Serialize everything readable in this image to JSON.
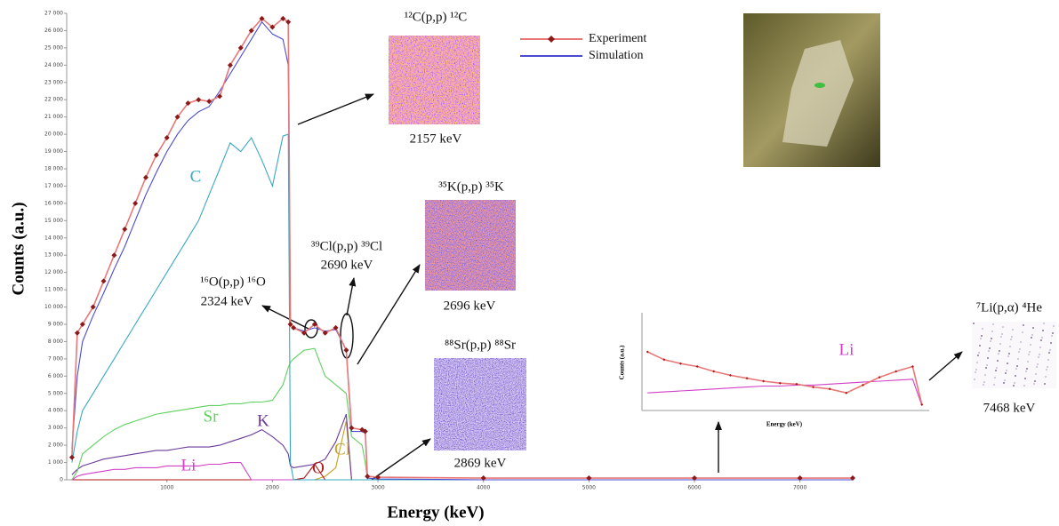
{
  "chart_data": [
    {
      "type": "line",
      "xlabel": "Energy (keV)",
      "ylabel": "Counts (a.u.)",
      "xlim": [
        50,
        7500
      ],
      "ylim": [
        0,
        27000
      ],
      "xticks": [
        1000,
        2000,
        3000,
        4000,
        5000,
        6000,
        7000
      ],
      "yticks": [
        0,
        {
          "value": 1000,
          "label": "1 000"
        },
        {
          "value": 2000,
          "label": "2 000"
        },
        {
          "value": 3000,
          "label": "3 000"
        },
        {
          "value": 4000,
          "label": "4 000"
        },
        {
          "value": 5000,
          "label": "5 000"
        },
        {
          "value": 6000,
          "label": "6 000"
        },
        {
          "value": 7000,
          "label": "7 000"
        },
        {
          "value": 8000,
          "label": "8 000"
        },
        {
          "value": 9000,
          "label": "9 000"
        },
        {
          "value": 10000,
          "label": "10 000"
        },
        {
          "value": 11000,
          "label": "11 000"
        },
        {
          "value": 12000,
          "label": "12 000"
        },
        {
          "value": 13000,
          "label": "13 000"
        },
        {
          "value": 14000,
          "label": "14 000"
        },
        {
          "value": 15000,
          "label": "15 000"
        },
        {
          "value": 16000,
          "label": "16 000"
        },
        {
          "value": 17000,
          "label": "17 000"
        },
        {
          "value": 18000,
          "label": "18 000"
        },
        {
          "value": 19000,
          "label": "19 000"
        },
        {
          "value": 20000,
          "label": "20 000"
        },
        {
          "value": 21000,
          "label": "21 000"
        },
        {
          "value": 22000,
          "label": "22 000"
        },
        {
          "value": 23000,
          "label": "23 000"
        },
        {
          "value": 24000,
          "label": "24 000"
        },
        {
          "value": 25000,
          "label": "25 000"
        },
        {
          "value": 26000,
          "label": "26 000"
        },
        {
          "value": 27000,
          "label": "27 000"
        }
      ],
      "x": [
        100,
        150,
        200,
        300,
        400,
        500,
        600,
        700,
        800,
        900,
        1000,
        1100,
        1200,
        1300,
        1400,
        1500,
        1600,
        1700,
        1800,
        1900,
        2000,
        2100,
        2150,
        2170,
        2200,
        2300,
        2400,
        2500,
        2600,
        2700,
        2750,
        2850,
        2880,
        2900,
        3000,
        4000,
        5000,
        6000,
        7000,
        7500
      ],
      "series": [
        {
          "name": "Experiment",
          "color": "#8b1a1a",
          "line_color": "#e87878",
          "markers": true,
          "in_legend": true,
          "values": [
            1300,
            8500,
            9000,
            10000,
            11500,
            13000,
            14500,
            16000,
            17500,
            18800,
            19800,
            21000,
            21800,
            22000,
            21900,
            22200,
            24000,
            25000,
            26000,
            26700,
            26200,
            26700,
            26500,
            9000,
            8800,
            8500,
            9000,
            8500,
            8800,
            7500,
            3000,
            2900,
            2800,
            200,
            150,
            100,
            100,
            100,
            100,
            100
          ]
        },
        {
          "name": "Simulation",
          "color": "#4a4ad0",
          "in_legend": true,
          "values": [
            1800,
            6000,
            8000,
            9500,
            10800,
            12200,
            13500,
            15000,
            16500,
            17800,
            19000,
            20000,
            20800,
            21300,
            21600,
            22500,
            23500,
            24500,
            25500,
            26500,
            25800,
            25500,
            24000,
            9000,
            8800,
            8600,
            8800,
            8600,
            8700,
            7500,
            2800,
            2800,
            2700,
            100,
            50,
            0,
            0,
            0,
            0,
            0
          ]
        },
        {
          "name": "C",
          "color": "#3aa8c1",
          "in_legend": false,
          "values": [
            1000,
            2800,
            4000,
            5000,
            6000,
            7000,
            8000,
            9000,
            10000,
            11000,
            12000,
            13000,
            14000,
            15000,
            16500,
            18000,
            19500,
            19000,
            19800,
            18500,
            17000,
            19900,
            20000,
            1000,
            0,
            0,
            0,
            0,
            0,
            0,
            0,
            0,
            0,
            0,
            0,
            0,
            0,
            0,
            0,
            0
          ]
        },
        {
          "name": "Sr",
          "color": "#5fd05f",
          "in_legend": false,
          "values": [
            0,
            500,
            1500,
            2000,
            2500,
            2900,
            3200,
            3400,
            3600,
            3800,
            3900,
            4000,
            4100,
            4200,
            4300,
            4300,
            4400,
            4400,
            4500,
            4500,
            4600,
            5500,
            6500,
            6800,
            7000,
            7500,
            7600,
            6000,
            5500,
            5000,
            2500,
            2000,
            1000,
            0,
            0,
            0,
            0,
            0,
            0,
            0
          ]
        },
        {
          "name": "K",
          "color": "#6a3a9a",
          "in_legend": false,
          "values": [
            300,
            600,
            800,
            1000,
            1200,
            1300,
            1400,
            1500,
            1600,
            1700,
            1700,
            1800,
            1900,
            1900,
            1900,
            2000,
            2200,
            2400,
            2600,
            2900,
            2500,
            2000,
            1500,
            800,
            700,
            800,
            900,
            1200,
            2200,
            3800,
            0,
            0,
            0,
            0,
            0,
            0,
            0,
            0,
            0,
            0
          ]
        },
        {
          "name": "Li",
          "color": "#d040c8",
          "in_legend": false,
          "values": [
            0,
            200,
            300,
            400,
            500,
            600,
            600,
            700,
            700,
            700,
            800,
            800,
            800,
            800,
            900,
            900,
            1000,
            1000,
            0,
            0,
            0,
            0,
            0,
            0,
            0,
            0,
            0,
            0,
            0,
            0,
            0,
            0,
            0,
            0,
            0,
            0,
            0,
            0,
            0,
            0
          ]
        },
        {
          "name": "O",
          "color": "#b01818",
          "in_legend": false,
          "values": [
            0,
            0,
            0,
            0,
            0,
            0,
            0,
            0,
            0,
            0,
            0,
            0,
            0,
            0,
            0,
            0,
            0,
            0,
            0,
            0,
            0,
            0,
            0,
            0,
            0,
            100,
            900,
            0,
            0,
            0,
            0,
            0,
            0,
            0,
            0,
            0,
            0,
            0,
            0,
            0
          ]
        },
        {
          "name": "Cl",
          "color": "#c8a020",
          "in_legend": false,
          "values": [
            0,
            0,
            0,
            0,
            0,
            0,
            0,
            0,
            0,
            0,
            0,
            0,
            0,
            0,
            0,
            0,
            0,
            0,
            0,
            0,
            0,
            0,
            0,
            0,
            0,
            0,
            0,
            200,
            700,
            3400,
            0,
            0,
            0,
            0,
            0,
            0,
            0,
            0,
            0,
            0
          ]
        }
      ],
      "annotations": [
        "¹²C(p,p) ¹²C",
        "2157 keV",
        "³⁵K(p,p) ³⁵K",
        "2696 keV",
        "³⁹Cl(p,p) ³⁹Cl",
        "2690 keV",
        "¹⁶O(p,p) ¹⁶O",
        "2324 keV",
        "⁸⁸Sr(p,p) ⁸⁸Sr",
        "2869 keV",
        "⁷Li(p,α) ⁴He",
        "7468 keV"
      ]
    },
    {
      "type": "line",
      "xlabel": "Energy (keV)",
      "ylabel": "Counts (a.u.)",
      "annotation": "Li",
      "xlim": [
        2400,
        7600
      ],
      "ylim": [
        0,
        100
      ],
      "x": [
        2500,
        2800,
        3100,
        3400,
        3700,
        4000,
        4300,
        4600,
        4900,
        5200,
        5500,
        5800,
        6100,
        6400,
        6700,
        7000,
        7300,
        7468
      ],
      "series": [
        {
          "name": "Experiment",
          "color": "#b01818",
          "line_color": "#e87878",
          "markers": true,
          "values": [
            60,
            52,
            48,
            45,
            40,
            36,
            33,
            30,
            28,
            27,
            24,
            22,
            18,
            26,
            34,
            40,
            45,
            6
          ]
        },
        {
          "name": "Simulation",
          "color": "#d040c8",
          "values": [
            18,
            19,
            20,
            21,
            22,
            23,
            24,
            25,
            25,
            26,
            26,
            27,
            28,
            29,
            30,
            31,
            32,
            5
          ]
        }
      ]
    }
  ]
}
